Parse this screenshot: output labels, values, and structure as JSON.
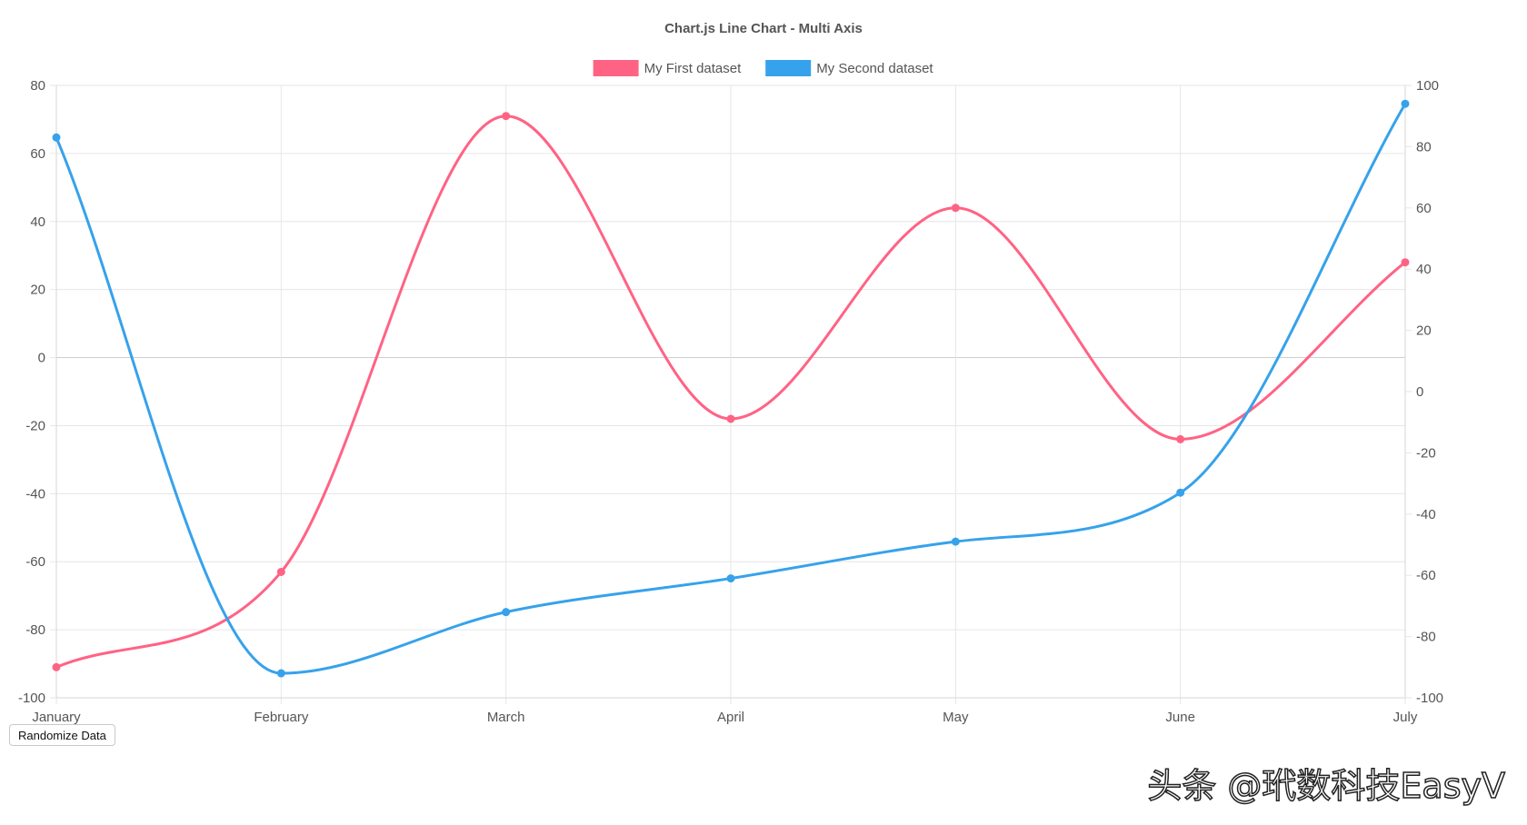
{
  "page": {
    "button_label": "Randomize Data",
    "watermark": "头条 @玳数科技EasyV"
  },
  "chart_data": {
    "type": "line",
    "title": "Chart.js Line Chart - Multi Axis",
    "categories": [
      "January",
      "February",
      "March",
      "April",
      "May",
      "June",
      "July"
    ],
    "legend_position": "top-center",
    "grid": true,
    "series": [
      {
        "name": "My First dataset",
        "color": "#ff6384",
        "axis": "left",
        "values": [
          -91,
          -63,
          71,
          -18,
          44,
          -24,
          28
        ]
      },
      {
        "name": "My Second dataset",
        "color": "#36a2eb",
        "axis": "right",
        "values": [
          83,
          -92,
          -72,
          -61,
          -49,
          -33,
          94
        ]
      }
    ],
    "y_left": {
      "min": -100,
      "max": 80,
      "ticks": [
        "80",
        "60",
        "40",
        "20",
        "0",
        "-20",
        "-40",
        "-60",
        "-80",
        "-100"
      ]
    },
    "y_right": {
      "min": -100,
      "max": 100,
      "ticks": [
        "100",
        "80",
        "60",
        "40",
        "20",
        "0",
        "-20",
        "-40",
        "-60",
        "-80",
        "-100"
      ]
    }
  }
}
